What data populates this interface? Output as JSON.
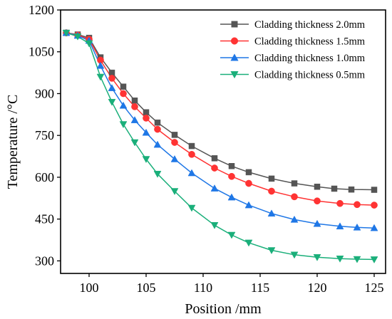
{
  "chart_data": {
    "type": "line",
    "xlabel": "Position /mm",
    "ylabel": "Temperature /°C",
    "xlim": [
      97.5,
      126
    ],
    "ylim": [
      255,
      1200
    ],
    "xticks": [
      100,
      105,
      110,
      115,
      120,
      125
    ],
    "yticks": [
      300,
      450,
      600,
      750,
      900,
      1050,
      1200
    ],
    "xtick_labels": [
      "100",
      "105",
      "110",
      "115",
      "120",
      "125"
    ],
    "ytick_labels": [
      "300",
      "450",
      "600",
      "750",
      "900",
      "1050",
      "1200"
    ],
    "grid": false,
    "legend_position": "top-right",
    "series": [
      {
        "name": "Cladding thickness 2.0mm",
        "color": "#555555",
        "marker": "square",
        "x": [
          98,
          99,
          100,
          101,
          102,
          103,
          104,
          105,
          106,
          107.5,
          109,
          111,
          112.5,
          114,
          116,
          118,
          120,
          121.5,
          123,
          125
        ],
        "y": [
          1118,
          1112,
          1100,
          1030,
          975,
          925,
          875,
          833,
          796,
          752,
          712,
          668,
          640,
          618,
          595,
          578,
          566,
          559,
          556,
          555
        ]
      },
      {
        "name": "Cladding thickness 1.5mm",
        "color": "#ff3333",
        "marker": "circle",
        "x": [
          98,
          99,
          100,
          101,
          102,
          103,
          104,
          105,
          106,
          107.5,
          109,
          111,
          112.5,
          114,
          116,
          118,
          120,
          122,
          123.5,
          125
        ],
        "y": [
          1118,
          1110,
          1095,
          1020,
          955,
          900,
          853,
          812,
          772,
          725,
          682,
          633,
          603,
          578,
          550,
          530,
          515,
          506,
          502,
          500
        ]
      },
      {
        "name": "Cladding thickness 1.0mm",
        "color": "#1f77e6",
        "marker": "triangle-up",
        "x": [
          98,
          99,
          100,
          101,
          102,
          103,
          104,
          105,
          106,
          107.5,
          109,
          111,
          112.5,
          114,
          116,
          118,
          120,
          122,
          123.5,
          125
        ],
        "y": [
          1118,
          1108,
          1090,
          1000,
          920,
          857,
          805,
          760,
          717,
          665,
          615,
          560,
          528,
          500,
          470,
          448,
          433,
          424,
          420,
          418
        ]
      },
      {
        "name": "Cladding thickness 0.5mm",
        "color": "#1aaf7a",
        "marker": "triangle-down",
        "x": [
          98,
          99,
          100,
          101,
          102,
          103,
          104,
          105,
          106,
          107.5,
          109,
          111,
          112.5,
          114,
          116,
          118,
          120,
          122,
          123.5,
          125
        ],
        "y": [
          1118,
          1105,
          1080,
          960,
          870,
          790,
          725,
          665,
          612,
          550,
          490,
          428,
          393,
          365,
          338,
          322,
          313,
          308,
          306,
          305
        ]
      }
    ]
  }
}
